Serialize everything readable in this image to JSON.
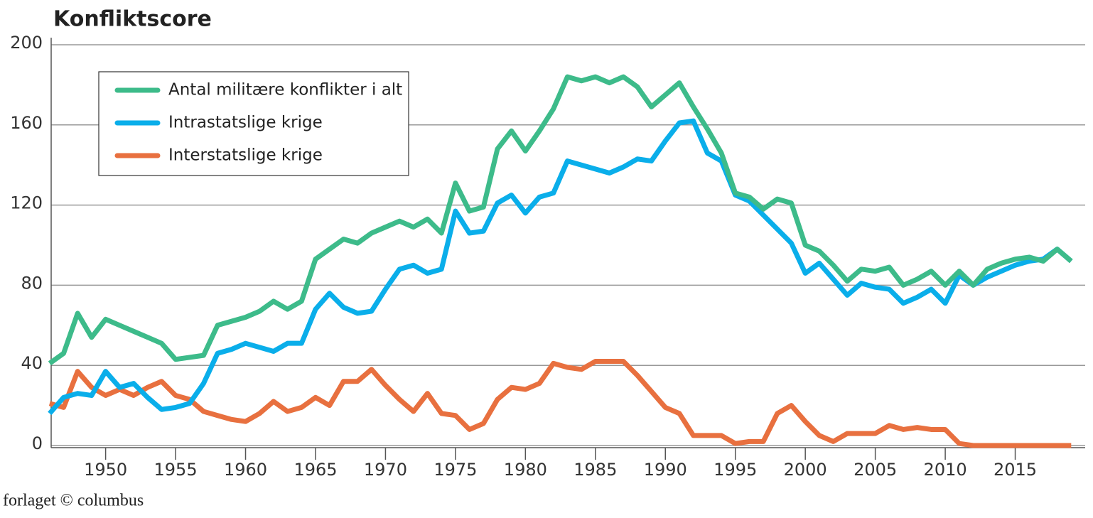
{
  "chart_data": {
    "type": "line",
    "title": "Konfliktscore",
    "credit": "forlaget © columbus",
    "x": [
      1946,
      1947,
      1948,
      1949,
      1950,
      1951,
      1952,
      1953,
      1954,
      1955,
      1956,
      1957,
      1958,
      1959,
      1960,
      1961,
      1962,
      1963,
      1964,
      1965,
      1966,
      1967,
      1968,
      1969,
      1970,
      1971,
      1972,
      1973,
      1974,
      1975,
      1976,
      1977,
      1978,
      1979,
      1980,
      1981,
      1982,
      1983,
      1984,
      1985,
      1986,
      1987,
      1988,
      1989,
      1990,
      1991,
      1992,
      1993,
      1994,
      1995,
      1996,
      1997,
      1998,
      1999,
      2000,
      2001,
      2002,
      2003,
      2004,
      2005,
      2006,
      2007,
      2008,
      2009,
      2010,
      2011,
      2012,
      2013,
      2014,
      2015,
      2016,
      2017,
      2018,
      2019
    ],
    "series": [
      {
        "name": "Antal militære konflikter i alt",
        "color": "#3dbb8a",
        "values": [
          41,
          46,
          66,
          54,
          63,
          60,
          57,
          54,
          51,
          43,
          44,
          45,
          60,
          62,
          64,
          67,
          72,
          68,
          72,
          93,
          98,
          103,
          101,
          106,
          109,
          112,
          109,
          113,
          106,
          131,
          117,
          119,
          148,
          157,
          147,
          157,
          168,
          184,
          182,
          184,
          181,
          184,
          179,
          169,
          175,
          181,
          169,
          158,
          146,
          126,
          124,
          118,
          123,
          121,
          100,
          97,
          90,
          82,
          88,
          87,
          89,
          80,
          83,
          87,
          80,
          87,
          80,
          88,
          91,
          93,
          94,
          92,
          98,
          92
        ]
      },
      {
        "name": "Intrastatslige krige",
        "color": "#0aaeea",
        "values": [
          16,
          24,
          26,
          25,
          37,
          29,
          31,
          24,
          18,
          19,
          21,
          31,
          46,
          48,
          51,
          49,
          47,
          51,
          51,
          68,
          76,
          69,
          66,
          67,
          78,
          88,
          90,
          86,
          88,
          117,
          106,
          107,
          121,
          125,
          116,
          124,
          126,
          142,
          140,
          138,
          136,
          139,
          143,
          142,
          152,
          161,
          162,
          146,
          142,
          125,
          122,
          115,
          108,
          101,
          86,
          91,
          83,
          75,
          81,
          79,
          78,
          71,
          74,
          78,
          71,
          85,
          80,
          84,
          87,
          90,
          92,
          93,
          98,
          92
        ]
      },
      {
        "name": "Interstatslige krige",
        "color": "#e8703f",
        "values": [
          21,
          19,
          37,
          29,
          25,
          28,
          25,
          29,
          32,
          25,
          23,
          17,
          15,
          13,
          12,
          16,
          22,
          17,
          19,
          24,
          20,
          32,
          32,
          38,
          30,
          23,
          17,
          26,
          16,
          15,
          8,
          11,
          23,
          29,
          28,
          31,
          41,
          39,
          38,
          42,
          42,
          42,
          35,
          27,
          19,
          16,
          5,
          5,
          5,
          1,
          2,
          2,
          16,
          20,
          12,
          5,
          2,
          6,
          6,
          6,
          10,
          8,
          9,
          8,
          8,
          1,
          0,
          0,
          0,
          0,
          0,
          0,
          0,
          0
        ]
      }
    ],
    "xlim": [
      1945.5,
      2020
    ],
    "xticks": [
      1950,
      1955,
      1960,
      1965,
      1970,
      1975,
      1980,
      1985,
      1990,
      1995,
      2000,
      2005,
      2010,
      2015
    ],
    "ylim": [
      0,
      200
    ],
    "yticks": [
      0,
      40,
      80,
      120,
      160,
      200
    ],
    "grid": true,
    "legend": "upper left"
  }
}
